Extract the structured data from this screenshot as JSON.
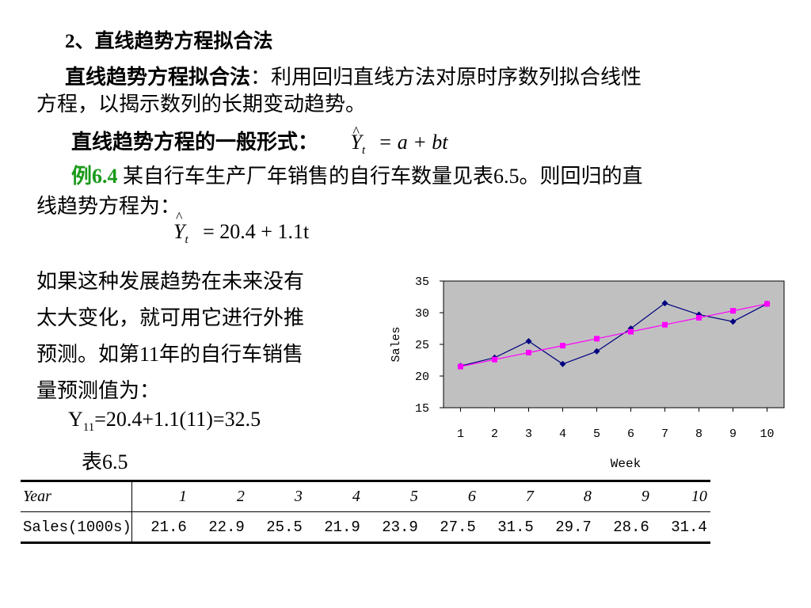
{
  "heading": "2、直线趋势方程拟合法",
  "intro": {
    "term": "直线趋势方程拟合法",
    "colon": "：",
    "line1_rest": "利用回归直线方法对原时序数列拟合线性",
    "line2": "方程，以揭示数列的长期变动趋势。"
  },
  "general_form": {
    "label": "直线趋势方程的一般形式：",
    "lhs": "Y",
    "lhs_sub": "t",
    "rhs": "= a + bt"
  },
  "example": {
    "tag": "例6.4",
    "line1": "某自行车生产厂年销售的自行车数量见表6.5。则回归的直",
    "line2": "线趋势方程为：",
    "eq_lhs": "Y",
    "eq_sub": "t",
    "eq_rhs": "= 20.4 + 1.1t"
  },
  "forecast": {
    "lines": [
      "如果这种发展趋势在未来没有",
      "太大变化，就可用它进行外推",
      "预测。如第11年的自行车销售",
      "量预测值为："
    ],
    "calc_Y": "Y",
    "calc_sub": "11",
    "calc_rest": "=20.4+1.1(11)=32.5",
    "table_caption": "表6.5"
  },
  "table": {
    "header_label": "Year",
    "years": [
      "1",
      "2",
      "3",
      "4",
      "5",
      "6",
      "7",
      "8",
      "9",
      "10"
    ],
    "row_label": "Sales(1000s)",
    "sales": [
      "21.6",
      "22.9",
      "25.5",
      "21.9",
      "23.9",
      "27.5",
      "31.5",
      "29.7",
      "28.6",
      "31.4"
    ]
  },
  "chart_data": {
    "type": "line",
    "x": [
      1,
      2,
      3,
      4,
      5,
      6,
      7,
      8,
      9,
      10
    ],
    "series": [
      {
        "values": [
          21.6,
          22.9,
          25.5,
          21.9,
          23.9,
          27.5,
          31.5,
          29.7,
          28.6,
          31.4
        ],
        "color": "#000080",
        "marker": "diamond"
      },
      {
        "values": [
          21.5,
          22.6,
          23.7,
          24.8,
          25.9,
          27.0,
          28.1,
          29.2,
          30.3,
          31.4
        ],
        "color": "#ff00ff",
        "marker": "square"
      }
    ],
    "xlabel": "Week",
    "ylabel": "Sales",
    "ylim": [
      15,
      35
    ],
    "yticks": [
      15,
      20,
      25,
      30,
      35
    ],
    "background": "#c0c0c0"
  }
}
